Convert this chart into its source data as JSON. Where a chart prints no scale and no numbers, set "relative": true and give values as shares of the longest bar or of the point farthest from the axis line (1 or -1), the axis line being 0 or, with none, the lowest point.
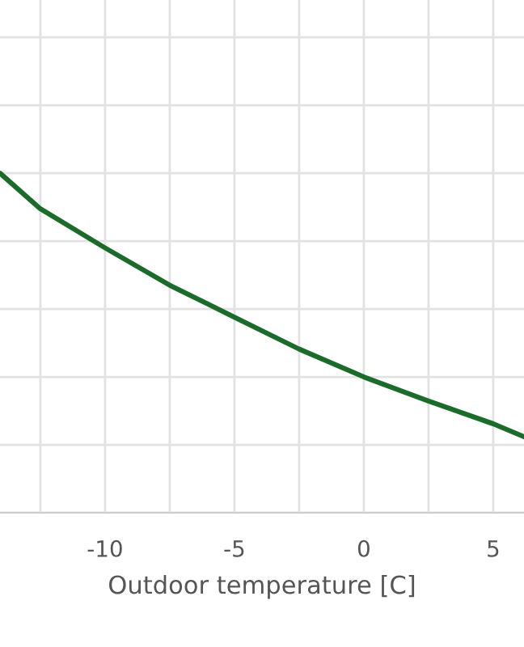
{
  "chart_data": {
    "type": "line",
    "relative": true,
    "xlabel": "Outdoor temperature [C]",
    "x": [
      -14.06,
      -12.5,
      -10,
      -7.5,
      -5,
      -2.5,
      0,
      2.5,
      5,
      6.19
    ],
    "series": [
      {
        "color": "#1b6b2b",
        "values": [
          1.0,
          0.895,
          0.78,
          0.67,
          0.576,
          0.482,
          0.4,
          0.329,
          0.262,
          0.224
        ]
      }
    ],
    "xlim": [
      -14.06,
      6.19
    ],
    "xticks": [
      {
        "value": -12.5,
        "label": null
      },
      -10,
      {
        "value": -7.5,
        "label": null
      },
      -5,
      {
        "value": -2.5,
        "label": null
      },
      0,
      {
        "value": 2.5,
        "label": null
      },
      5
    ],
    "grid": true,
    "marker": "none",
    "line_style": "solid"
  }
}
